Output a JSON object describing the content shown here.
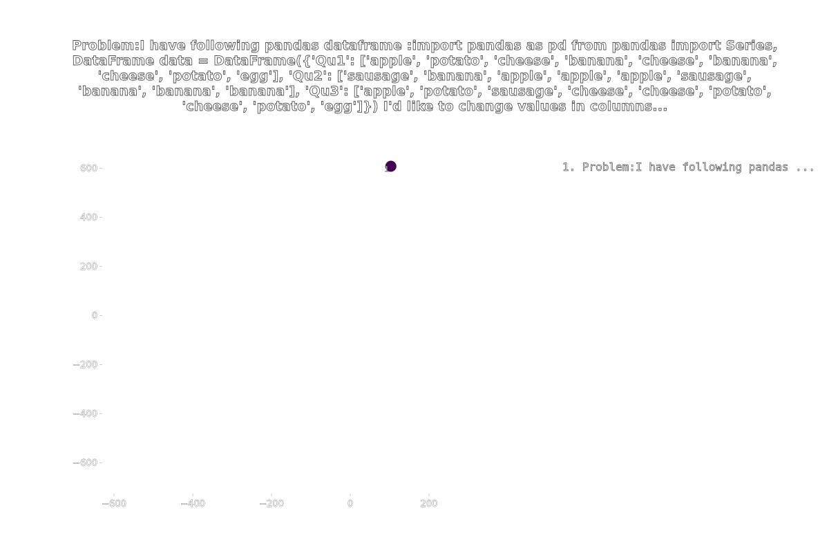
{
  "chart_data": {
    "type": "scatter",
    "title": "Problem:I have following pandas dataframe :import pandas as pd from pandas import Series, DataFrame data = DataFrame({'Qu1': ['apple', 'potato', 'cheese', 'banana', 'cheese', 'banana', 'cheese', 'potato', 'egg'],               'Qu2': ['sausage', 'banana', 'apple', 'apple', 'apple', 'sausage', 'banana', 'banana', 'banana'],               'Qu3': ['apple', 'potato', 'sausage', 'cheese', 'cheese', 'potato', 'cheese', 'potato', 'egg']}) I'd like to change values in columns...",
    "xlabel": "",
    "ylabel": "",
    "xlim": [
      -630,
      370
    ],
    "ylim": [
      -725,
      660
    ],
    "x_ticks": [
      -600,
      -400,
      -200,
      0,
      200
    ],
    "y_ticks": [
      -600,
      -400,
      -200,
      0,
      200,
      400,
      600
    ],
    "x_tick_labels": [
      "−600",
      "−400",
      "−200",
      "0",
      "200"
    ],
    "y_tick_labels": [
      "−600",
      "−400",
      "−200",
      "0",
      "200",
      "400",
      "600"
    ],
    "grid": false,
    "legend_placement": "top-right",
    "legend": [
      "1. Problem:I have following pandas ..."
    ],
    "points": [
      {
        "x": 103,
        "y": 608,
        "label": "1",
        "color": "#440154"
      }
    ]
  }
}
